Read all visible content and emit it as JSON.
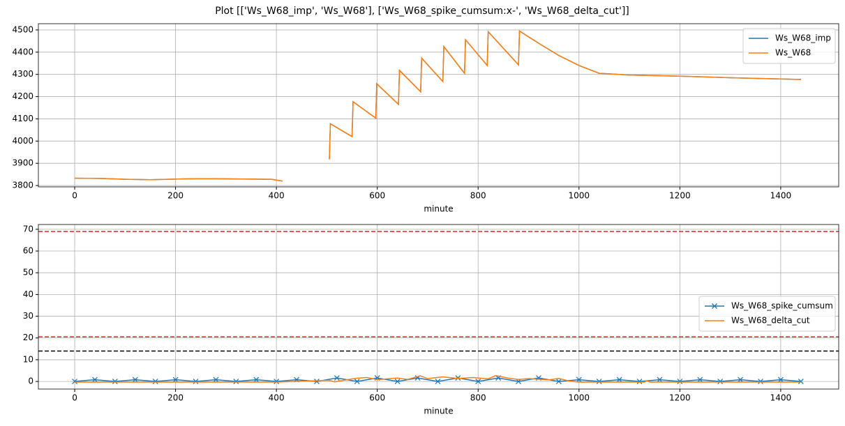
{
  "title": "Plot [['Ws_W68_imp', 'Ws_W68'], ['Ws_W68_spike_cumsum:x-', 'Ws_W68_delta_cut']]",
  "chart_data": [
    {
      "type": "line",
      "xlabel": "minute",
      "x": [
        0,
        50,
        100,
        150,
        200,
        250,
        300,
        350,
        390,
        412,
        460,
        505,
        507,
        550,
        552,
        597,
        599,
        642,
        644,
        686,
        688,
        730,
        732,
        773,
        775,
        818,
        820,
        880,
        882,
        920,
        960,
        1000,
        1040,
        1100,
        1200,
        1300,
        1440
      ],
      "series": [
        {
          "name": "Ws_W68_imp",
          "color": "#1f77b4",
          "values": [
            3833,
            3832,
            3828,
            3826,
            3829,
            3831,
            3830,
            3829,
            3828,
            3820,
            null,
            3918,
            4078,
            4020,
            4177,
            4103,
            4258,
            4165,
            4318,
            4222,
            4373,
            4268,
            4425,
            4305,
            4456,
            4340,
            4492,
            4343,
            4495,
            4440,
            4385,
            4340,
            4305,
            4297,
            4292,
            4285,
            4277
          ]
        },
        {
          "name": "Ws_W68",
          "color": "#ff7f0e",
          "values": [
            3833,
            3832,
            3828,
            3826,
            3829,
            3831,
            3830,
            3829,
            3828,
            3820,
            null,
            3918,
            4078,
            4020,
            4177,
            4103,
            4258,
            4165,
            4318,
            4222,
            4373,
            4268,
            4425,
            4305,
            4456,
            4340,
            4492,
            4343,
            4495,
            4440,
            4385,
            4340,
            4305,
            4297,
            4292,
            4285,
            4277
          ]
        }
      ],
      "xlim": [
        -72,
        1515
      ],
      "xticks": [
        0,
        200,
        400,
        600,
        800,
        1000,
        1200,
        1400
      ],
      "ylim": [
        3794,
        4528
      ],
      "yticks": [
        3800,
        3900,
        4000,
        4100,
        4200,
        4300,
        4400,
        4500
      ],
      "grid": true,
      "legend": "upper right"
    },
    {
      "type": "line",
      "xlabel": "minute",
      "series": [
        {
          "name": "Ws_W68_spike_cumsum",
          "color": "#1f77b4",
          "marker": "x",
          "x": [
            0,
            40,
            80,
            120,
            160,
            200,
            240,
            280,
            320,
            360,
            400,
            440,
            480,
            520,
            560,
            600,
            640,
            680,
            720,
            760,
            800,
            840,
            880,
            920,
            960,
            1000,
            1040,
            1080,
            1120,
            1160,
            1200,
            1240,
            1280,
            1320,
            1360,
            1400,
            1440
          ],
          "values": [
            0,
            0.8,
            0,
            0.8,
            0,
            0.8,
            0,
            0.8,
            0,
            0.8,
            0,
            0.8,
            0,
            1.6,
            0,
            1.6,
            0,
            1.6,
            0,
            1.6,
            0,
            1.6,
            0,
            1.6,
            0,
            0.8,
            0,
            0.8,
            0,
            0.8,
            0,
            0.8,
            0,
            0.8,
            0,
            0.8,
            0
          ]
        },
        {
          "name": "Ws_W68_delta_cut",
          "color": "#ff7f0e",
          "x": [
            0,
            400,
            505,
            515,
            540,
            560,
            580,
            600,
            620,
            640,
            660,
            685,
            700,
            730,
            760,
            790,
            820,
            835,
            860,
            880,
            900,
            940,
            960,
            980,
            1000,
            1130,
            1135,
            1140,
            1440
          ],
          "values": [
            -0.3,
            -0.3,
            0.5,
            -0.2,
            0.8,
            1.5,
            1.8,
            0.8,
            1.2,
            1.6,
            0.9,
            2.6,
            1.3,
            2.1,
            1.4,
            1.8,
            1.2,
            2.7,
            1.5,
            0.9,
            1.3,
            0.7,
            1.4,
            0.2,
            -0.3,
            -0.3,
            0.3,
            -0.3,
            -0.3
          ]
        }
      ],
      "hlines": [
        {
          "value": 69,
          "color": "#d62728"
        },
        {
          "value": 20.5,
          "color": "#d62728"
        },
        {
          "value": 14,
          "color": "#000000"
        }
      ],
      "xlim": [
        -72,
        1515
      ],
      "xticks": [
        0,
        200,
        400,
        600,
        800,
        1000,
        1200,
        1400
      ],
      "ylim": [
        -3.5,
        72.2
      ],
      "yticks": [
        0,
        10,
        20,
        30,
        40,
        50,
        60,
        70
      ],
      "grid": true,
      "legend": "center right"
    }
  ]
}
